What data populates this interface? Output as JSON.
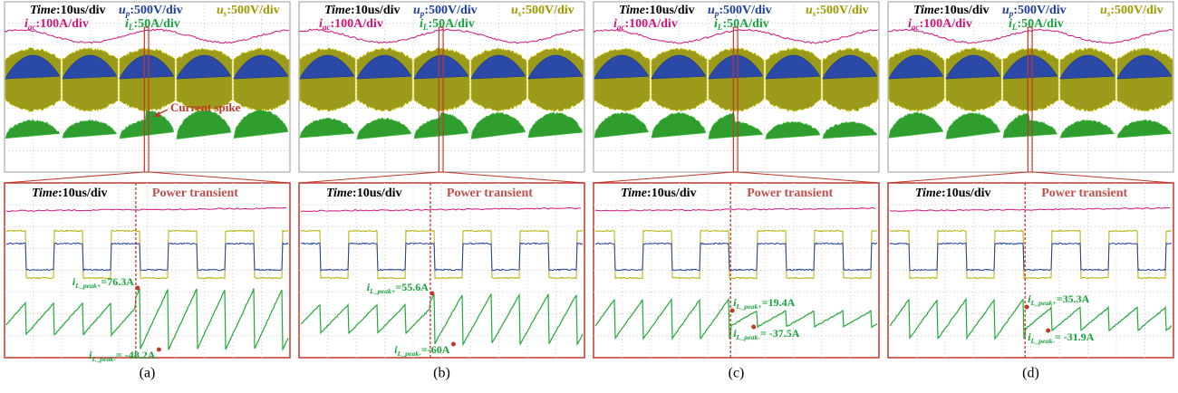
{
  "panels": [
    {
      "caption": "(a)",
      "scope": {
        "time": {
          "name": "Time",
          "scale": ":10us/div"
        },
        "up": {
          "symbol": "u",
          "sub": "p",
          "scale": ":500V/div"
        },
        "us": {
          "symbol": "u",
          "sub": "s",
          "scale": ":500V/div"
        },
        "iac": {
          "symbol": "i",
          "sub": "ac",
          "scale": ":100A/div"
        },
        "il": {
          "symbol": "i",
          "sub": "L",
          "scale": ":50A/div"
        }
      },
      "annotation": "Current spike",
      "zoom": {
        "time": {
          "name": "Time",
          "scale": ":10us/div"
        },
        "event": "Power transient",
        "peak_pos": {
          "symbol": "i",
          "sub": "L_peak+",
          "value": "=76.3A"
        },
        "peak_neg": {
          "symbol": "i",
          "sub": "L_peak-",
          "value": "= -48.2A"
        }
      }
    },
    {
      "caption": "(b)",
      "scope": {
        "time": {
          "name": "Time",
          "scale": ":10us/div"
        },
        "up": {
          "symbol": "u",
          "sub": "p",
          "scale": ":500V/div"
        },
        "us": {
          "symbol": "u",
          "sub": "s",
          "scale": ":500V/div"
        },
        "iac": {
          "symbol": "i",
          "sub": "ac",
          "scale": ":100A/div"
        },
        "il": {
          "symbol": "i",
          "sub": "L",
          "scale": ":50A/div"
        }
      },
      "zoom": {
        "time": {
          "name": "Time",
          "scale": ":10us/div"
        },
        "event": "Power transient",
        "peak_pos": {
          "symbol": "i",
          "sub": "L_peak+",
          "value": "=55.6A"
        },
        "peak_neg": {
          "symbol": "i",
          "sub": "L_peak-",
          "value": "=-60A"
        }
      }
    },
    {
      "caption": "(c)",
      "scope": {
        "time": {
          "name": "Time",
          "scale": ":10us/div"
        },
        "up": {
          "symbol": "u",
          "sub": "p",
          "scale": ":500V/div"
        },
        "us": {
          "symbol": "u",
          "sub": "s",
          "scale": ":500V/div"
        },
        "iac": {
          "symbol": "i",
          "sub": "ac",
          "scale": ":100A/div"
        },
        "il": {
          "symbol": "i",
          "sub": "L",
          "scale": ":50A/div"
        }
      },
      "zoom": {
        "time": {
          "name": "Time",
          "scale": ":10us/div"
        },
        "event": "Power transient",
        "peak_pos": {
          "symbol": "i",
          "sub": "L_peak+",
          "value": "=19.4A"
        },
        "peak_neg": {
          "symbol": "i",
          "sub": "L_peak-",
          "value": "= -37.5A"
        }
      }
    },
    {
      "caption": "(d)",
      "scope": {
        "time": {
          "name": "Time",
          "scale": ":10us/div"
        },
        "up": {
          "symbol": "u",
          "sub": "p",
          "scale": ":500V/div"
        },
        "us": {
          "symbol": "u",
          "sub": "s",
          "scale": ":500V/div"
        },
        "iac": {
          "symbol": "i",
          "sub": "ac",
          "scale": ":100A/div"
        },
        "il": {
          "symbol": "i",
          "sub": "L",
          "scale": ":50A/div"
        }
      },
      "zoom": {
        "time": {
          "name": "Time",
          "scale": ":10us/div"
        },
        "event": "Power transient",
        "peak_pos": {
          "symbol": "i",
          "sub": "L_peak+",
          "value": "=35.3A"
        },
        "peak_neg": {
          "symbol": "i",
          "sub": "L_peak-",
          "value": "= -31.9A"
        }
      }
    }
  ]
}
